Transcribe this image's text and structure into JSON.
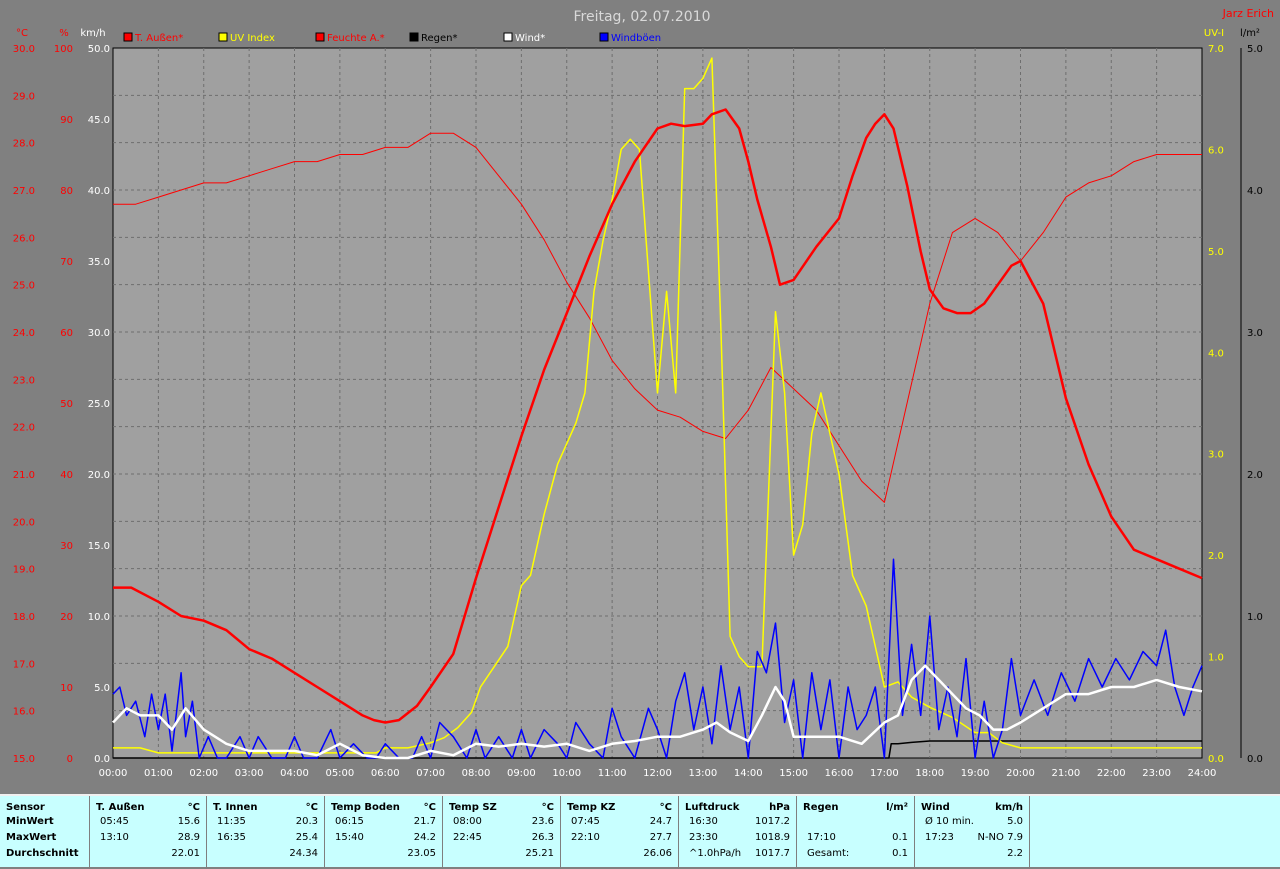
{
  "title": "Freitag, 02.07.2010",
  "author": "Jarz Erich",
  "chart_data": {
    "type": "line",
    "x_unit": "hours",
    "xlim": [
      0,
      24
    ],
    "x_ticks": [
      "00:00",
      "01:00",
      "02:00",
      "03:00",
      "04:00",
      "05:00",
      "06:00",
      "07:00",
      "08:00",
      "09:00",
      "10:00",
      "11:00",
      "12:00",
      "13:00",
      "14:00",
      "15:00",
      "16:00",
      "17:00",
      "18:00",
      "19:00",
      "20:00",
      "21:00",
      "22:00",
      "23:00",
      "24:00"
    ],
    "axes": {
      "temp": {
        "label": "°C",
        "min": 15,
        "max": 30,
        "ticks": [
          "30.0",
          "29.0",
          "28.0",
          "27.0",
          "26.0",
          "25.0",
          "24.0",
          "23.0",
          "22.0",
          "21.0",
          "20.0",
          "19.0",
          "18.0",
          "17.0",
          "16.0",
          "15.0"
        ],
        "color": "#ff0000"
      },
      "humidity": {
        "label": "%",
        "min": 0,
        "max": 100,
        "ticks": [
          "100",
          "90",
          "80",
          "70",
          "60",
          "50",
          "40",
          "30",
          "20",
          "10",
          "0"
        ],
        "color": "#ff0000"
      },
      "wind": {
        "label": "km/h",
        "min": 0,
        "max": 50,
        "ticks": [
          "50.0",
          "45.0",
          "40.0",
          "35.0",
          "30.0",
          "25.0",
          "20.0",
          "15.0",
          "10.0",
          "5.0",
          "0.0"
        ],
        "color": "#ffffff"
      },
      "uv": {
        "label": "UV-I",
        "min": 0,
        "max": 7,
        "ticks": [
          "7.0",
          "6.0",
          "5.0",
          "4.0",
          "3.0",
          "2.0",
          "1.0",
          "0.0"
        ],
        "color": "#ffff00"
      },
      "rain": {
        "label": "l/m²",
        "min": 0,
        "max": 5,
        "ticks": [
          "5.0",
          "4.0",
          "3.0",
          "2.0",
          "1.0",
          "0.0"
        ],
        "color": "#000000"
      }
    },
    "legend": [
      {
        "name": "T. Außen*",
        "color": "#ff0000"
      },
      {
        "name": "UV Index",
        "color": "#ffff00"
      },
      {
        "name": "Feuchte A.*",
        "color": "#ff0000"
      },
      {
        "name": "Regen*",
        "color": "#000000"
      },
      {
        "name": "Wind*",
        "color": "#ffffff"
      },
      {
        "name": "Windböen",
        "color": "#0000ff"
      }
    ],
    "series": [
      {
        "name": "T. Außen*",
        "axis": "temp",
        "color": "#ff0000",
        "width": 2.5,
        "x": [
          0,
          0.4,
          1,
          1.5,
          2,
          2.5,
          3,
          3.5,
          4,
          4.5,
          5,
          5.5,
          5.75,
          6,
          6.3,
          6.7,
          7,
          7.5,
          8,
          8.5,
          9,
          9.5,
          10,
          10.5,
          11,
          11.5,
          12,
          12.3,
          12.6,
          13,
          13.2,
          13.5,
          13.8,
          14,
          14.2,
          14.5,
          14.7,
          15,
          15.5,
          16,
          16.3,
          16.6,
          16.8,
          17,
          17.2,
          17.5,
          17.8,
          18,
          18.3,
          18.6,
          18.9,
          19.2,
          19.5,
          19.8,
          20,
          20.5,
          21,
          21.5,
          22,
          22.5,
          23,
          23.5,
          24
        ],
        "y": [
          18.6,
          18.6,
          18.3,
          18.0,
          17.9,
          17.7,
          17.3,
          17.1,
          16.8,
          16.5,
          16.2,
          15.9,
          15.8,
          15.75,
          15.8,
          16.1,
          16.5,
          17.2,
          18.8,
          20.3,
          21.8,
          23.2,
          24.4,
          25.6,
          26.7,
          27.6,
          28.3,
          28.4,
          28.35,
          28.4,
          28.6,
          28.7,
          28.3,
          27.6,
          26.8,
          25.8,
          25.0,
          25.1,
          25.8,
          26.4,
          27.3,
          28.1,
          28.4,
          28.6,
          28.3,
          27.1,
          25.7,
          24.9,
          24.5,
          24.4,
          24.4,
          24.6,
          25.0,
          25.4,
          25.5,
          24.6,
          22.6,
          21.2,
          20.1,
          19.4,
          19.2,
          19.0,
          18.8
        ]
      },
      {
        "name": "Feuchte A.*",
        "axis": "humidity",
        "color": "#ff0000",
        "width": 1,
        "x": [
          0,
          0.5,
          1,
          1.5,
          2,
          2.5,
          3,
          3.5,
          4,
          4.5,
          5,
          5.5,
          6,
          6.5,
          7,
          7.5,
          8,
          8.5,
          9,
          9.5,
          10,
          10.5,
          11,
          11.5,
          12,
          12.5,
          13,
          13.5,
          14,
          14.5,
          15,
          15.5,
          16,
          16.5,
          17,
          17.5,
          18,
          18.5,
          19,
          19.5,
          20,
          20.5,
          21,
          21.5,
          22,
          22.5,
          23,
          23.5,
          24
        ],
        "y": [
          78,
          78,
          79,
          80,
          81,
          81,
          82,
          83,
          84,
          84,
          85,
          85,
          86,
          86,
          88,
          88,
          86,
          82,
          78,
          73,
          67,
          62,
          56,
          52,
          49,
          48,
          46,
          45,
          49,
          55,
          52,
          49,
          44,
          39,
          36,
          50,
          64,
          74,
          76,
          74,
          70,
          74,
          79,
          81,
          82,
          84,
          85,
          85,
          85
        ]
      },
      {
        "name": "UV Index",
        "axis": "uv",
        "color": "#ffff00",
        "width": 1.5,
        "x": [
          0,
          0.3,
          0.6,
          1,
          1.5,
          2,
          3,
          4,
          5,
          5.8,
          6,
          6.5,
          7,
          7.3,
          7.6,
          7.9,
          8.1,
          8.4,
          8.7,
          9,
          9.2,
          9.5,
          9.8,
          10,
          10.2,
          10.4,
          10.6,
          10.8,
          11,
          11.2,
          11.4,
          11.6,
          11.8,
          12,
          12.2,
          12.4,
          12.6,
          12.8,
          13,
          13.2,
          13.4,
          13.6,
          13.8,
          14,
          14.3,
          14.6,
          14.8,
          15,
          15.2,
          15.4,
          15.6,
          15.8,
          16,
          16.3,
          16.6,
          17,
          17.3,
          17.6,
          18,
          18.5,
          19,
          19.3,
          19.6,
          20,
          20.5,
          21,
          22,
          23,
          24
        ],
        "y": [
          0.1,
          0.1,
          0.1,
          0.05,
          0.05,
          0.05,
          0.05,
          0.05,
          0.05,
          0.05,
          0.1,
          0.1,
          0.15,
          0.2,
          0.3,
          0.45,
          0.7,
          0.9,
          1.1,
          1.7,
          1.8,
          2.4,
          2.9,
          3.1,
          3.3,
          3.6,
          4.6,
          5.1,
          5.5,
          6.0,
          6.1,
          6.0,
          4.8,
          3.6,
          4.6,
          3.6,
          6.6,
          6.6,
          6.7,
          6.9,
          4.2,
          1.2,
          1.0,
          0.9,
          0.9,
          4.4,
          3.6,
          2.0,
          2.3,
          3.2,
          3.6,
          3.2,
          2.8,
          1.8,
          1.5,
          0.7,
          0.75,
          0.6,
          0.5,
          0.4,
          0.25,
          0.25,
          0.15,
          0.1,
          0.1,
          0.1,
          0.1,
          0.1,
          0.1
        ]
      },
      {
        "name": "Regen*",
        "axis": "rain",
        "color": "#000000",
        "width": 1.5,
        "x": [
          0,
          17.1,
          17.15,
          17.3,
          17.6,
          18,
          18.5,
          19,
          20,
          21,
          22,
          23,
          24
        ],
        "y": [
          0,
          0,
          0.1,
          0.1,
          0.11,
          0.12,
          0.12,
          0.12,
          0.12,
          0.12,
          0.12,
          0.12,
          0.12
        ]
      },
      {
        "name": "Wind*",
        "axis": "wind",
        "color": "#ffffff",
        "width": 2.5,
        "x": [
          0,
          0.3,
          0.6,
          1,
          1.3,
          1.6,
          2,
          2.5,
          3,
          3.5,
          4,
          4.5,
          5,
          5.5,
          6,
          6.5,
          7,
          7.5,
          8,
          8.5,
          9,
          9.5,
          10,
          10.5,
          11,
          11.5,
          12,
          12.5,
          13,
          13.3,
          13.6,
          14,
          14.3,
          14.6,
          14.8,
          15,
          15.5,
          16,
          16.5,
          17,
          17.3,
          17.6,
          17.9,
          18.2,
          18.5,
          18.8,
          19.1,
          19.4,
          19.7,
          20,
          20.5,
          21,
          21.5,
          22,
          22.5,
          23,
          23.5,
          24
        ],
        "y": [
          2.5,
          3.5,
          3.0,
          3.0,
          2.0,
          3.5,
          2.0,
          1.0,
          0.5,
          0.5,
          0.5,
          0.2,
          1.0,
          0.2,
          0,
          0,
          0.5,
          0.2,
          1.0,
          0.8,
          1.0,
          0.8,
          1.0,
          0.5,
          1.0,
          1.2,
          1.5,
          1.5,
          2.0,
          2.5,
          1.8,
          1.2,
          3.0,
          5.0,
          4.0,
          1.5,
          1.5,
          1.5,
          1.0,
          2.5,
          3.0,
          5.5,
          6.5,
          5.5,
          4.5,
          3.5,
          3.0,
          2.0,
          2.0,
          2.5,
          3.5,
          4.5,
          4.5,
          5.0,
          5.0,
          5.5,
          5.0,
          4.7
        ]
      },
      {
        "name": "Windböen",
        "axis": "wind",
        "color": "#0000ff",
        "width": 1.5,
        "x": [
          0,
          0.15,
          0.3,
          0.5,
          0.7,
          0.85,
          1.0,
          1.15,
          1.3,
          1.5,
          1.6,
          1.75,
          1.9,
          2.1,
          2.3,
          2.5,
          2.8,
          3.0,
          3.2,
          3.5,
          3.8,
          4.0,
          4.2,
          4.5,
          4.8,
          5.0,
          5.3,
          5.6,
          5.8,
          6.0,
          6.3,
          6.6,
          6.8,
          7.0,
          7.2,
          7.5,
          7.8,
          8.0,
          8.2,
          8.5,
          8.8,
          9.0,
          9.2,
          9.5,
          9.8,
          10.0,
          10.2,
          10.5,
          10.8,
          11.0,
          11.2,
          11.5,
          11.8,
          12.0,
          12.2,
          12.4,
          12.6,
          12.8,
          13.0,
          13.2,
          13.4,
          13.6,
          13.8,
          14.0,
          14.2,
          14.4,
          14.6,
          14.8,
          15.0,
          15.2,
          15.4,
          15.6,
          15.8,
          16.0,
          16.2,
          16.4,
          16.6,
          16.8,
          17.0,
          17.2,
          17.4,
          17.6,
          17.8,
          18.0,
          18.2,
          18.4,
          18.6,
          18.8,
          19.0,
          19.2,
          19.4,
          19.6,
          19.8,
          20.0,
          20.3,
          20.6,
          20.9,
          21.2,
          21.5,
          21.8,
          22.1,
          22.4,
          22.7,
          23.0,
          23.2,
          23.4,
          23.6,
          23.8,
          24.0
        ],
        "y": [
          4.5,
          5.0,
          3.0,
          4.0,
          1.5,
          4.5,
          2.0,
          4.5,
          0.5,
          6.0,
          1.5,
          4.0,
          0,
          1.5,
          0,
          0,
          1.5,
          0,
          1.5,
          0,
          0,
          1.5,
          0,
          0,
          2.0,
          0,
          1.0,
          0,
          0,
          1.0,
          0,
          0,
          1.5,
          0,
          2.5,
          1.5,
          0,
          2.0,
          0,
          1.5,
          0,
          2.0,
          0,
          2.0,
          1.0,
          0,
          2.5,
          1.0,
          0,
          3.5,
          1.5,
          0,
          3.5,
          2.0,
          0,
          4.0,
          6.0,
          2.0,
          5.0,
          1.0,
          6.5,
          2.0,
          5.0,
          0,
          7.5,
          6.0,
          9.5,
          2.5,
          5.5,
          0,
          6.0,
          2.0,
          5.5,
          0,
          5.0,
          2.0,
          3.0,
          5.0,
          0,
          14.0,
          3.0,
          8.0,
          3.0,
          10.0,
          2.0,
          5.0,
          1.5,
          7.0,
          0,
          4.0,
          0,
          2.0,
          7.0,
          3.0,
          5.5,
          3.0,
          6.0,
          4.0,
          7.0,
          5.0,
          7.0,
          5.5,
          7.5,
          6.5,
          9.0,
          5.0,
          3.0,
          5.0,
          6.5
        ]
      }
    ]
  },
  "stats": {
    "columns": [
      {
        "title": "Sensor",
        "unit": "",
        "rows": [
          [
            "MinWert",
            "",
            ""
          ],
          [
            "MaxWert",
            "",
            ""
          ],
          [
            "Durchschnitt",
            "",
            ""
          ]
        ]
      },
      {
        "title": "T. Außen",
        "unit": "°C",
        "rows": [
          [
            "05:45",
            "15.6"
          ],
          [
            "13:10",
            "28.9"
          ],
          [
            "",
            "22.01"
          ]
        ]
      },
      {
        "title": "T. Innen",
        "unit": "°C",
        "rows": [
          [
            "11:35",
            "20.3"
          ],
          [
            "16:35",
            "25.4"
          ],
          [
            "",
            "24.34"
          ]
        ]
      },
      {
        "title": "Temp Boden",
        "unit": "°C",
        "rows": [
          [
            "06:15",
            "21.7"
          ],
          [
            "15:40",
            "24.2"
          ],
          [
            "",
            "23.05"
          ]
        ]
      },
      {
        "title": "Temp SZ",
        "unit": "°C",
        "rows": [
          [
            "08:00",
            "23.6"
          ],
          [
            "22:45",
            "26.3"
          ],
          [
            "",
            "25.21"
          ]
        ]
      },
      {
        "title": "Temp KZ",
        "unit": "°C",
        "rows": [
          [
            "07:45",
            "24.7"
          ],
          [
            "22:10",
            "27.7"
          ],
          [
            "",
            "26.06"
          ]
        ]
      },
      {
        "title": "Luftdruck",
        "unit": "hPa",
        "rows": [
          [
            "16:30",
            "1017.2"
          ],
          [
            "23:30",
            "1018.9"
          ],
          [
            "^1.0hPa/h",
            "1017.7"
          ]
        ]
      },
      {
        "title": "Regen",
        "unit": "l/m²",
        "rows": [
          [
            "",
            ""
          ],
          [
            "17:10",
            "0.1"
          ],
          [
            "Gesamt:",
            "0.1"
          ]
        ]
      },
      {
        "title": "Wind",
        "unit": "km/h",
        "rows": [
          [
            "Ø 10 min.",
            "5.0"
          ],
          [
            "17:23",
            "N-NO 7.9"
          ],
          [
            "",
            "2.2"
          ]
        ]
      }
    ]
  }
}
